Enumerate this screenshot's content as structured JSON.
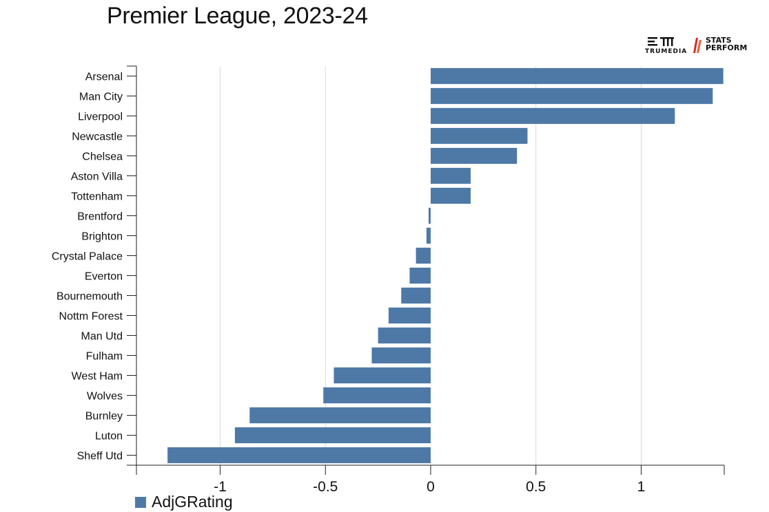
{
  "title": "Premier League, 2023-24",
  "logos": {
    "trumedia_text": "TRUMEDIA",
    "stats_perform_line1": "STATS",
    "stats_perform_line2": "PERFORM"
  },
  "legend": {
    "label": "AdjGRating",
    "color": "#4e79a7"
  },
  "chart_data": {
    "type": "bar",
    "orientation": "horizontal",
    "title": "Premier League, 2023-24",
    "categories": [
      "Arsenal",
      "Man City",
      "Liverpool",
      "Newcastle",
      "Chelsea",
      "Aston Villa",
      "Tottenham",
      "Brentford",
      "Brighton",
      "Crystal Palace",
      "Everton",
      "Bournemouth",
      "Nottm Forest",
      "Man Utd",
      "Fulham",
      "West Ham",
      "Wolves",
      "Burnley",
      "Luton",
      "Sheff Utd"
    ],
    "series": [
      {
        "name": "AdjGRating",
        "values": [
          1.39,
          1.34,
          1.16,
          0.46,
          0.41,
          0.19,
          0.19,
          -0.01,
          -0.02,
          -0.07,
          -0.1,
          -0.14,
          -0.2,
          -0.25,
          -0.28,
          -0.46,
          -0.51,
          -0.86,
          -0.93,
          -1.25
        ]
      }
    ],
    "xlim": [
      -1.4,
      1.4
    ],
    "xticks": [
      -1,
      -0.5,
      0,
      0.5,
      1
    ],
    "xtick_labels": [
      "-1",
      "-0.5",
      "0",
      "0.5",
      "1"
    ],
    "grid": true,
    "bar_color": "#4e79a7",
    "legend_position": "bottom-left"
  }
}
